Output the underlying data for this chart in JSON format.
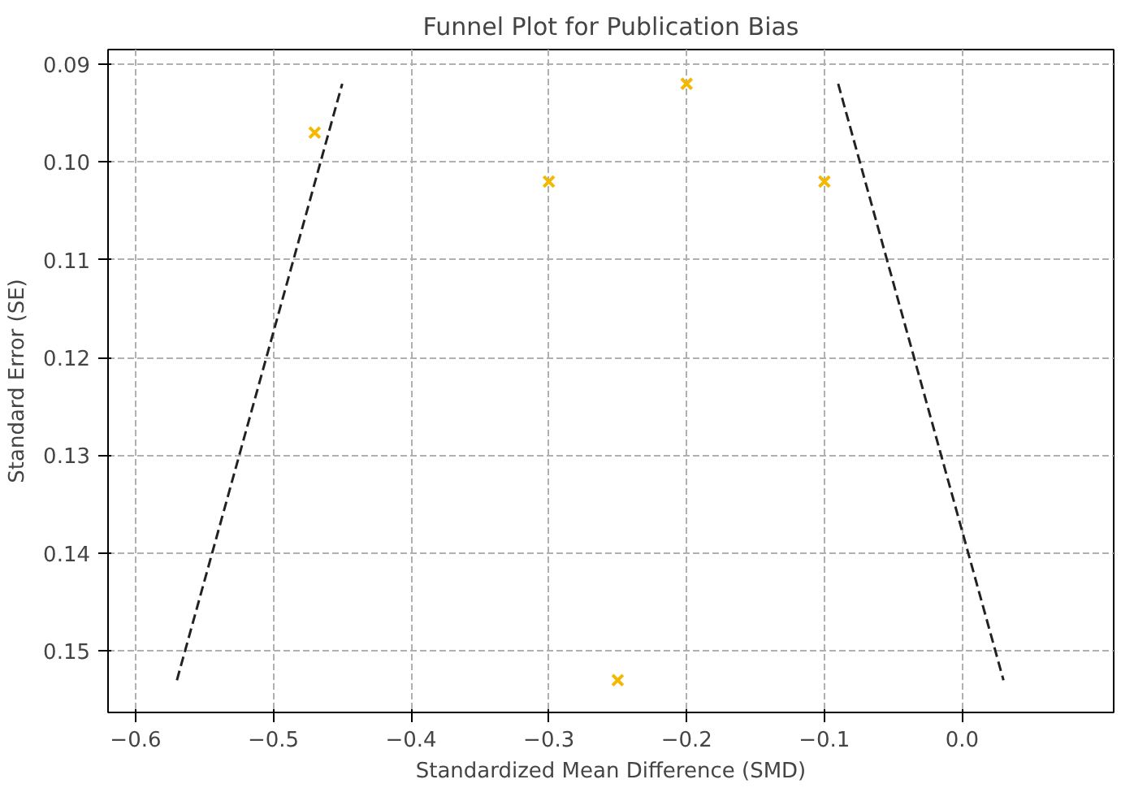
{
  "chart_data": {
    "type": "scatter",
    "title": "Funnel Plot for Publication Bias",
    "xlabel": "Standardized Mean Difference (SMD)",
    "ylabel": "Standard Error (SE)",
    "xlim": [
      -0.62,
      0.11
    ],
    "ylim": [
      0.1563,
      0.0885
    ],
    "xticks": [
      {
        "value": -0.6,
        "label": "−0.6"
      },
      {
        "value": -0.5,
        "label": "−0.5"
      },
      {
        "value": -0.4,
        "label": "−0.4"
      },
      {
        "value": -0.3,
        "label": "−0.3"
      },
      {
        "value": -0.2,
        "label": "−0.2"
      },
      {
        "value": -0.1,
        "label": "−0.1"
      },
      {
        "value": 0.0,
        "label": "0.0"
      }
    ],
    "yticks": [
      {
        "value": 0.09,
        "label": "0.09"
      },
      {
        "value": 0.1,
        "label": "0.10"
      },
      {
        "value": 0.11,
        "label": "0.11"
      },
      {
        "value": 0.12,
        "label": "0.12"
      },
      {
        "value": 0.13,
        "label": "0.13"
      },
      {
        "value": 0.14,
        "label": "0.14"
      },
      {
        "value": 0.15,
        "label": "0.15"
      }
    ],
    "grid": true,
    "series": [
      {
        "marker": "cross",
        "color": "#f5b800",
        "x": [
          -0.47,
          -0.3,
          -0.2,
          -0.1,
          -0.25
        ],
        "values": [
          0.097,
          0.102,
          0.092,
          0.102,
          0.153
        ]
      },
      {
        "type": "line",
        "color": "#222222",
        "line_style": "dashed",
        "x": [
          -0.57,
          -0.45
        ],
        "values": [
          0.153,
          0.092
        ]
      },
      {
        "type": "line",
        "color": "#222222",
        "line_style": "dashed",
        "x": [
          -0.09,
          0.03
        ],
        "values": [
          0.092,
          0.153
        ]
      }
    ]
  }
}
